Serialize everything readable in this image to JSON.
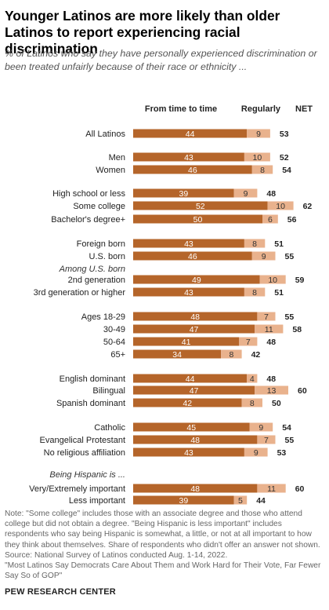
{
  "title": "Younger Latinos are more likely than older Latinos to report experiencing racial discrimination",
  "subtitle": "% of Latinos who say they have personally experienced discrimination or been treated unfairly because of their race or ethnicity ...",
  "chart_data": {
    "type": "bar",
    "stacked": true,
    "series": [
      {
        "name": "From time to time",
        "color": "#b5652a"
      },
      {
        "name": "Regularly",
        "color": "#e9b28d"
      },
      {
        "name": "NET"
      }
    ],
    "rows": [
      {
        "label": "All Latinos",
        "values": [
          44,
          9
        ],
        "net": 53
      },
      {
        "label": "Men",
        "values": [
          43,
          10
        ],
        "net": 52
      },
      {
        "label": "Women",
        "values": [
          46,
          8
        ],
        "net": 54
      },
      {
        "label": "High school or less",
        "values": [
          39,
          9
        ],
        "net": 48
      },
      {
        "label": "Some college",
        "values": [
          52,
          10
        ],
        "net": 62
      },
      {
        "label": "Bachelor's degree+",
        "values": [
          50,
          6
        ],
        "net": 56
      },
      {
        "label": "Foreign born",
        "values": [
          43,
          8
        ],
        "net": 51
      },
      {
        "label": "U.S. born",
        "values": [
          46,
          9
        ],
        "net": 55
      },
      {
        "label": "Among U.S. born",
        "header": true
      },
      {
        "label": "2nd generation",
        "values": [
          49,
          10
        ],
        "net": 59
      },
      {
        "label": "3rd generation or higher",
        "values": [
          43,
          8
        ],
        "net": 51
      },
      {
        "label": "Ages 18-29",
        "values": [
          48,
          7
        ],
        "net": 55
      },
      {
        "label": "30-49",
        "values": [
          47,
          11
        ],
        "net": 58
      },
      {
        "label": "50-64",
        "values": [
          41,
          7
        ],
        "net": 48
      },
      {
        "label": "65+",
        "values": [
          34,
          8
        ],
        "net": 42
      },
      {
        "label": "English dominant",
        "values": [
          44,
          4
        ],
        "net": 48
      },
      {
        "label": "Bilingual",
        "values": [
          47,
          13
        ],
        "net": 60
      },
      {
        "label": "Spanish dominant",
        "values": [
          42,
          8
        ],
        "net": 50
      },
      {
        "label": "Catholic",
        "values": [
          45,
          9
        ],
        "net": 54
      },
      {
        "label": "Evangelical Protestant",
        "values": [
          48,
          7
        ],
        "net": 55
      },
      {
        "label": "No religious affiliation",
        "values": [
          43,
          9
        ],
        "net": 53
      },
      {
        "label": "Being Hispanic is ...",
        "header": true
      },
      {
        "label": "Very/Extremely important",
        "values": [
          48,
          11
        ],
        "net": 60
      },
      {
        "label": "Less important",
        "values": [
          39,
          5
        ],
        "net": 44
      }
    ]
  },
  "notes": {
    "note": "Note: \"Some college\" includes those with an associate degree and those who attend college but did not obtain a degree. \"Being Hispanic is less important\" includes respondents who say being Hispanic is somewhat, a little, or not at all important to how they think about themselves. Share of respondents who didn't offer an answer not shown.",
    "source": "Source: National Survey of Latinos conducted Aug. 1-14, 2022.",
    "report": "\"Most Latinos Say Democrats Care About Them and Work Hard for Their Vote, Far Fewer Say So of GOP\""
  },
  "brand": "PEW RESEARCH CENTER"
}
